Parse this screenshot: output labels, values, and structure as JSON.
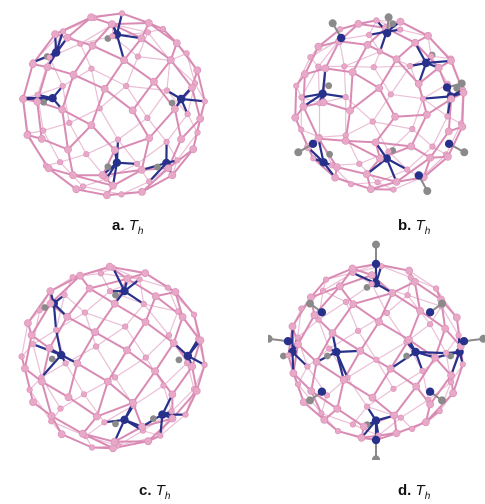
{
  "panels": [
    {
      "id": "a",
      "label": "a.",
      "symbol": "T",
      "subscript": "h"
    },
    {
      "id": "b",
      "label": "b.",
      "symbol": "T",
      "subscript": "h"
    },
    {
      "id": "c",
      "label": "c.",
      "symbol": "T",
      "subscript": "h"
    },
    {
      "id": "d",
      "label": "d.",
      "symbol": "T",
      "subscript": "h"
    }
  ],
  "colors": {
    "boron_atom": "#e8a9c8",
    "boron_bond": "#d98bb4",
    "metal_atom": "#27308a",
    "hydrogen_atom": "#8a8a8a",
    "caption_text": "#111111"
  }
}
